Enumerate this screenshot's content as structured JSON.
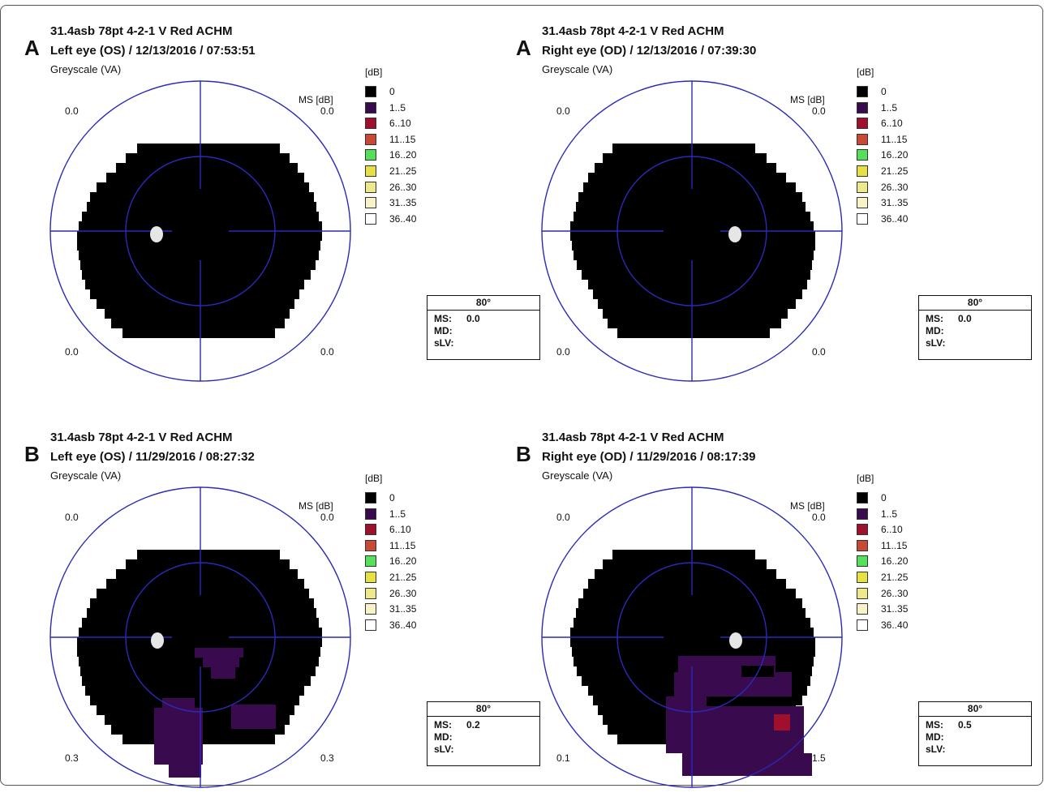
{
  "legend": {
    "unit": "[dB]",
    "items": [
      {
        "label": "0",
        "color": "#000000"
      },
      {
        "label": "1..5",
        "color": "#3a0a4e"
      },
      {
        "label": "6..10",
        "color": "#a0102c"
      },
      {
        "label": "11..15",
        "color": "#c84a34"
      },
      {
        "label": "16..20",
        "color": "#55e05a"
      },
      {
        "label": "21..25",
        "color": "#e6e040"
      },
      {
        "label": "26..30",
        "color": "#ede88a"
      },
      {
        "label": "31..35",
        "color": "#f7f3c6"
      },
      {
        "label": "36..40",
        "color": "#ffffff"
      }
    ]
  },
  "panels": [
    {
      "letter": "A",
      "title": "31.4asb 78pt 4-2-1 V Red ACHM",
      "eye": "Left eye (OS)",
      "date_time": " / 12/13/2016 / 07:53:51",
      "scale": "Greyscale (VA)",
      "ms_label": "MS [dB]",
      "quadrants": {
        "ul": "0.0",
        "ur": "0.0",
        "ll": "0.0",
        "lr": "0.0"
      },
      "stats": {
        "angle": "80°",
        "ms_label": "MS:",
        "ms": "0.0",
        "md_label": "MD:",
        "md": "",
        "slv_label": "sLV:",
        "slv": ""
      }
    },
    {
      "letter": "A",
      "title": "31.4asb 78pt 4-2-1 V Red ACHM",
      "eye": "Right eye (OD)",
      "date_time": " / 12/13/2016 / 07:39:30",
      "scale": "Greyscale (VA)",
      "ms_label": "MS [dB]",
      "quadrants": {
        "ul": "0.0",
        "ur": "0.0",
        "ll": "0.0",
        "lr": "0.0"
      },
      "stats": {
        "angle": "80°",
        "ms_label": "MS:",
        "ms": "0.0",
        "md_label": "MD:",
        "md": "",
        "slv_label": "sLV:",
        "slv": ""
      }
    },
    {
      "letter": "B",
      "title": "31.4asb 78pt 4-2-1 V Red ACHM",
      "eye": "Left eye (OS)",
      "date_time": " / 11/29/2016 / 08:27:32",
      "scale": "Greyscale (VA)",
      "ms_label": "MS [dB]",
      "quadrants": {
        "ul": "0.0",
        "ur": "0.0",
        "ll": "0.3",
        "lr": "0.3"
      },
      "stats": {
        "angle": "80°",
        "ms_label": "MS:",
        "ms": "0.2",
        "md_label": "MD:",
        "md": "",
        "slv_label": "sLV:",
        "slv": ""
      }
    },
    {
      "letter": "B",
      "title": "31.4asb 78pt 4-2-1 V Red ACHM",
      "eye": "Right eye (OD)",
      "date_time": " / 11/29/2016 / 08:17:39",
      "scale": "Greyscale (VA)",
      "ms_label": "MS [dB]",
      "quadrants": {
        "ul": "0.0",
        "ur": "0.0",
        "ll": "0.1",
        "lr": "1.5"
      },
      "stats": {
        "angle": "80°",
        "ms_label": "MS:",
        "ms": "0.5",
        "md_label": "MD:",
        "md": "",
        "slv_label": "sLV:",
        "slv": ""
      }
    }
  ]
}
